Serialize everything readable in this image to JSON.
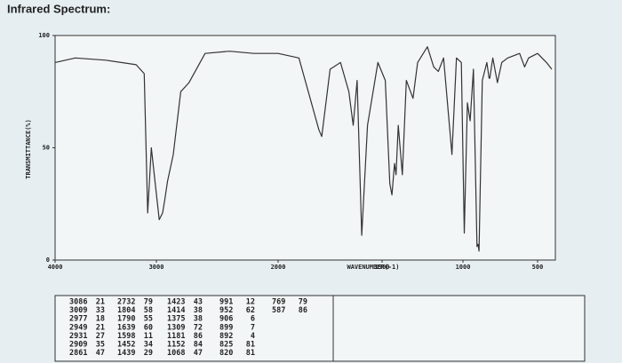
{
  "page_title": "Infrared Spectrum:",
  "chart_data": {
    "type": "line",
    "x_label": "WAVENUMBER(-1)",
    "y_label": "TRANSMITTANCE(%)",
    "color": "#333333",
    "xlim": [
      4000,
      400
    ],
    "ylim": [
      0,
      100
    ],
    "xticks": [
      4000,
      3000,
      2000,
      1500,
      1000,
      500
    ],
    "yticks": [
      0,
      50,
      100
    ],
    "x": [
      4000,
      3800,
      3500,
      3200,
      3120,
      3086,
      3050,
      3009,
      2977,
      2949,
      2931,
      2909,
      2861,
      2800,
      2732,
      2600,
      2400,
      2200,
      2000,
      1900,
      1804,
      1790,
      1750,
      1700,
      1660,
      1639,
      1620,
      1598,
      1570,
      1520,
      1480,
      1452,
      1439,
      1423,
      1414,
      1400,
      1375,
      1350,
      1309,
      1280,
      1220,
      1181,
      1152,
      1120,
      1068,
      1040,
      1010,
      991,
      970,
      952,
      930,
      906,
      899,
      892,
      870,
      840,
      825,
      820,
      800,
      769,
      740,
      700,
      620,
      587,
      560,
      500,
      450,
      420
    ],
    "values": [
      88,
      90,
      89,
      87,
      83,
      21,
      50,
      33,
      18,
      21,
      27,
      35,
      47,
      75,
      79,
      92,
      93,
      92,
      92,
      90,
      58,
      55,
      85,
      88,
      75,
      60,
      80,
      11,
      60,
      88,
      80,
      34,
      29,
      43,
      38,
      60,
      38,
      80,
      72,
      88,
      95,
      86,
      84,
      90,
      47,
      90,
      88,
      12,
      70,
      62,
      85,
      6,
      7,
      4,
      80,
      88,
      81,
      81,
      90,
      79,
      88,
      90,
      92,
      86,
      90,
      92,
      88,
      85
    ]
  },
  "peak_table": [
    [
      [
        3086,
        21
      ],
      [
        3009,
        33
      ],
      [
        2977,
        18
      ],
      [
        2949,
        21
      ],
      [
        2931,
        27
      ],
      [
        2909,
        35
      ],
      [
        2861,
        47
      ]
    ],
    [
      [
        2732,
        79
      ],
      [
        1804,
        58
      ],
      [
        1790,
        55
      ],
      [
        1639,
        60
      ],
      [
        1598,
        11
      ],
      [
        1452,
        34
      ],
      [
        1439,
        29
      ]
    ],
    [
      [
        1423,
        43
      ],
      [
        1414,
        38
      ],
      [
        1375,
        38
      ],
      [
        1309,
        72
      ],
      [
        1181,
        86
      ],
      [
        1152,
        84
      ],
      [
        1068,
        47
      ]
    ],
    [
      [
        991,
        12
      ],
      [
        952,
        62
      ],
      [
        906,
        6
      ],
      [
        899,
        7
      ],
      [
        892,
        4
      ],
      [
        825,
        81
      ],
      [
        820,
        81
      ]
    ],
    [
      [
        769,
        79
      ],
      [
        587,
        86
      ]
    ]
  ]
}
